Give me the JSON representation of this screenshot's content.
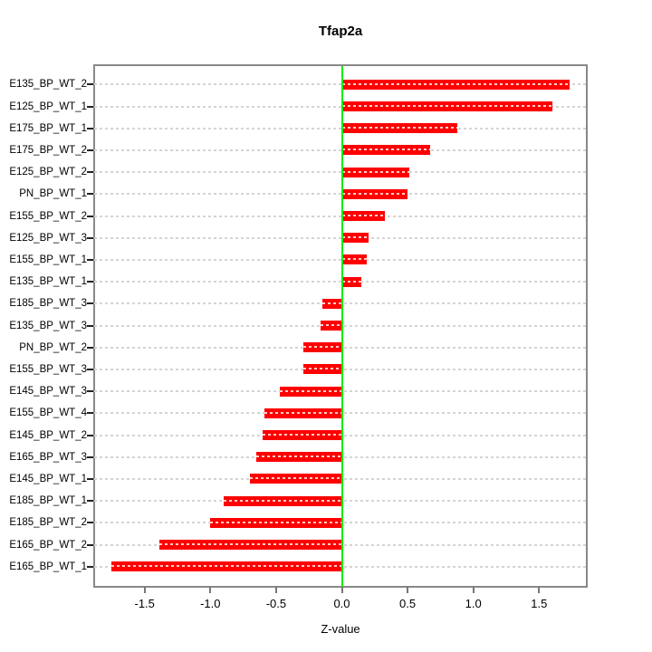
{
  "page": {
    "background": "#ffffff"
  },
  "chart_data": {
    "type": "bar",
    "orientation": "horizontal",
    "title": "Tfap2a",
    "xlabel": "Z-value",
    "ylabel": "",
    "categories": [
      "E135_BP_WT_2",
      "E125_BP_WT_1",
      "E175_BP_WT_1",
      "E175_BP_WT_2",
      "E125_BP_WT_2",
      "PN_BP_WT_1",
      "E155_BP_WT_2",
      "E125_BP_WT_3",
      "E155_BP_WT_1",
      "E135_BP_WT_1",
      "E185_BP_WT_3",
      "E135_BP_WT_3",
      "PN_BP_WT_2",
      "E155_BP_WT_3",
      "E145_BP_WT_3",
      "E155_BP_WT_4",
      "E145_BP_WT_2",
      "E165_BP_WT_3",
      "E145_BP_WT_1",
      "E185_BP_WT_1",
      "E185_BP_WT_2",
      "E165_BP_WT_2",
      "E165_BP_WT_1"
    ],
    "values": [
      1.73,
      1.6,
      0.88,
      0.67,
      0.51,
      0.5,
      0.33,
      0.2,
      0.19,
      0.15,
      -0.15,
      -0.16,
      -0.29,
      -0.29,
      -0.47,
      -0.59,
      -0.6,
      -0.65,
      -0.7,
      -0.9,
      -1.0,
      -1.39,
      -1.75
    ],
    "x_ticks": [
      -1.5,
      -1.0,
      -0.5,
      0.0,
      0.5,
      1.0,
      1.5
    ],
    "x_tick_labels": [
      "-1.5",
      "-1.0",
      "-0.5",
      "0.0",
      "0.5",
      "1.0",
      "1.5"
    ],
    "xlim": [
      -1.88,
      1.86
    ],
    "grid": true,
    "grid_style": "dashed",
    "zero_reference_line": 0.0,
    "colors": {
      "bar": "#ff0000",
      "zero_line": "#00ee00",
      "box": "#888888",
      "grid_line": "#d4d4d4",
      "text": "#000000"
    }
  }
}
